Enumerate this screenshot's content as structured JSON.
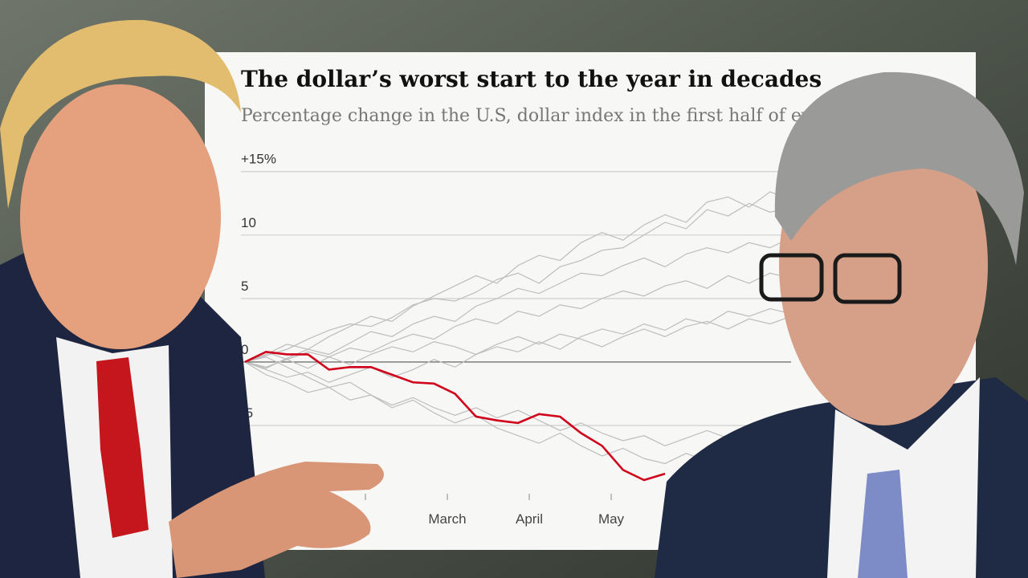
{
  "chart_data": {
    "type": "line",
    "title": "The dollar’s worst start to the year in decades",
    "subtitle": "Percentage change in the U.S, dollar index in the first half of eve",
    "xlim": [
      0,
      26
    ],
    "x_labels": [
      null,
      "March",
      "April",
      "May",
      null
    ],
    "ylim": [
      -10.5,
      16.5
    ],
    "yticks": [
      {
        "value": 15,
        "label": "+15%"
      },
      10,
      5,
      0,
      -5
    ],
    "grid": true,
    "series": [
      {
        "color": "#bdbdbd",
        "values": [
          0,
          0.5,
          1,
          1.8,
          2.5,
          3,
          2.8,
          3.5,
          4.5,
          5,
          4.8,
          5.5,
          6.5,
          7,
          6.2,
          7.5,
          8,
          8.8,
          9,
          10,
          11,
          10.5,
          12,
          11.5,
          12.5,
          11.8,
          12.2
        ]
      },
      {
        "color": "#bdbdbd",
        "values": [
          0,
          -0.5,
          0.3,
          1,
          0.6,
          1.5,
          2.4,
          2,
          3,
          3.6,
          3.2,
          4.4,
          5,
          5.8,
          5.4,
          6.2,
          7,
          6.8,
          7.6,
          8.2,
          7.5,
          8.5,
          9,
          8.6,
          9.4,
          9,
          9.8
        ]
      },
      {
        "color": "#bdbdbd",
        "values": [
          0,
          0.8,
          0.2,
          -0.5,
          0.4,
          1.1,
          0.8,
          1.6,
          2.2,
          1.8,
          2.8,
          3.4,
          3,
          4,
          3.6,
          4.5,
          4.2,
          5,
          5.6,
          5.2,
          6,
          6.4,
          5.8,
          6.8,
          6.2,
          7,
          6.6
        ]
      },
      {
        "color": "#bdbdbd",
        "values": [
          0,
          -0.6,
          -1.2,
          -0.8,
          -1.6,
          -1,
          -0.4,
          -1.2,
          -0.6,
          0.2,
          -0.4,
          0.6,
          1.2,
          0.8,
          1.6,
          1,
          2,
          2.6,
          2.2,
          3,
          2.5,
          3.4,
          3,
          4,
          3.6,
          4.2,
          3.8
        ]
      },
      {
        "color": "#bdbdbd",
        "values": [
          0,
          -1,
          -1.6,
          -2.4,
          -2,
          -3,
          -2.6,
          -3.4,
          -2.8,
          -3.6,
          -4.2,
          -3.6,
          -4.4,
          -3.8,
          -4.6,
          -5.4,
          -4.8,
          -5.6,
          -6.2,
          -5.8,
          -6.6,
          -6,
          -5.4,
          -6,
          -5.2,
          -5.8,
          -5
        ]
      },
      {
        "color": "#bdbdbd",
        "values": [
          0,
          0.4,
          -0.4,
          -1.2,
          -2,
          -1.6,
          -2.6,
          -3.6,
          -3,
          -4,
          -4.8,
          -4.2,
          -5.2,
          -5.8,
          -6.4,
          -5.6,
          -6.6,
          -7.4,
          -6.8,
          -7.6,
          -8,
          -7.2,
          -7.8,
          -7,
          -6.4,
          -7,
          -6.2
        ]
      },
      {
        "color": "#bdbdbd",
        "values": [
          0,
          0.6,
          1.4,
          1,
          2,
          2.8,
          3.6,
          3.2,
          4.4,
          5.2,
          6,
          6.8,
          6.2,
          7.6,
          8.4,
          8,
          9.4,
          10.2,
          9.6,
          10.8,
          11.6,
          11,
          12.6,
          13,
          12.2,
          13.4,
          12.8
        ]
      },
      {
        "color": "#bdbdbd",
        "values": [
          0,
          -0.4,
          0.2,
          0.8,
          0.4,
          -0.2,
          0.6,
          1.2,
          0.8,
          1.6,
          1.2,
          0.6,
          1.4,
          2,
          1.4,
          2.2,
          1.8,
          1.2,
          2,
          2.6,
          2,
          2.8,
          3.2,
          2.6,
          3.4,
          3,
          3.6
        ]
      },
      {
        "color": "#d0021b",
        "values": [
          0,
          0.8,
          0.6,
          0.6,
          -0.6,
          -0.4,
          -0.4,
          -1,
          -1.6,
          -1.7,
          -2.5,
          -4.3,
          -4.6,
          -4.8,
          -4.1,
          -4.3,
          -5.6,
          -6.6,
          -8.5,
          -9.3,
          -8.8
        ]
      }
    ]
  }
}
